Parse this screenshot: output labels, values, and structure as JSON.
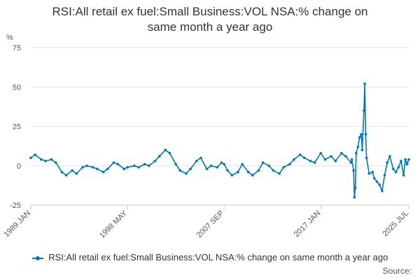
{
  "chart_data": {
    "type": "line",
    "title": "RSI:All retail ex fuel:Small Business:VOL NSA:% change on same month a year ago",
    "title_lines": [
      "RSI:All retail ex fuel:Small Business:VOL NSA:% change on",
      "same month a year ago"
    ],
    "ylabel": "%",
    "xlabel": "",
    "ylim": [
      -25,
      75
    ],
    "y_ticks": [
      75,
      50,
      25,
      0,
      -25
    ],
    "x_range": [
      "1989 JAN",
      "2025 JUL"
    ],
    "x_ticks": [
      "1989 JAN",
      "1998 MAY",
      "2007 SEP",
      "2017 JAN",
      "2025 JUL"
    ],
    "grid": true,
    "legend_position": "bottom",
    "color": "#0077b6",
    "series": [
      {
        "name": "RSI:All retail ex fuel:Small Business:VOL NSA:% change on same month a year ago",
        "points": [
          [
            "1989-01",
            5
          ],
          [
            "1989-06",
            7
          ],
          [
            "1990-01",
            4
          ],
          [
            "1990-06",
            3
          ],
          [
            "1991-01",
            4
          ],
          [
            "1991-06",
            2
          ],
          [
            "1992-01",
            -4
          ],
          [
            "1992-06",
            -6
          ],
          [
            "1993-01",
            -3
          ],
          [
            "1993-06",
            -5
          ],
          [
            "1994-01",
            -1
          ],
          [
            "1994-06",
            0
          ],
          [
            "1995-01",
            -1
          ],
          [
            "1995-06",
            -2
          ],
          [
            "1996-01",
            -4
          ],
          [
            "1996-06",
            -2
          ],
          [
            "1997-01",
            2
          ],
          [
            "1997-06",
            1
          ],
          [
            "1998-01",
            -2
          ],
          [
            "1998-05",
            -1
          ],
          [
            "1999-01",
            0
          ],
          [
            "1999-06",
            -1
          ],
          [
            "2000-01",
            1
          ],
          [
            "2000-06",
            0
          ],
          [
            "2001-01",
            3
          ],
          [
            "2001-06",
            6
          ],
          [
            "2002-01",
            10
          ],
          [
            "2002-06",
            8
          ],
          [
            "2003-01",
            1
          ],
          [
            "2003-06",
            -3
          ],
          [
            "2004-01",
            -5
          ],
          [
            "2004-06",
            -2
          ],
          [
            "2005-01",
            3
          ],
          [
            "2005-06",
            5
          ],
          [
            "2006-01",
            -2
          ],
          [
            "2006-06",
            0
          ],
          [
            "2007-01",
            -1
          ],
          [
            "2007-06",
            2
          ],
          [
            "2007-09",
            1
          ],
          [
            "2008-01",
            -3
          ],
          [
            "2008-06",
            -6
          ],
          [
            "2009-01",
            -4
          ],
          [
            "2009-06",
            1
          ],
          [
            "2010-01",
            -4
          ],
          [
            "2010-06",
            -6
          ],
          [
            "2011-01",
            -3
          ],
          [
            "2011-06",
            2
          ],
          [
            "2012-01",
            0
          ],
          [
            "2012-06",
            -3
          ],
          [
            "2013-01",
            -5
          ],
          [
            "2013-06",
            -1
          ],
          [
            "2014-01",
            1
          ],
          [
            "2014-06",
            4
          ],
          [
            "2015-01",
            7
          ],
          [
            "2015-06",
            5
          ],
          [
            "2016-01",
            3
          ],
          [
            "2016-06",
            2
          ],
          [
            "2017-01",
            8
          ],
          [
            "2017-06",
            4
          ],
          [
            "2018-01",
            6
          ],
          [
            "2018-06",
            3
          ],
          [
            "2019-01",
            8
          ],
          [
            "2019-06",
            6
          ],
          [
            "2019-12",
            2
          ],
          [
            "2020-01",
            4
          ],
          [
            "2020-03",
            -3
          ],
          [
            "2020-04",
            -20
          ],
          [
            "2020-05",
            -14
          ],
          [
            "2020-06",
            8
          ],
          [
            "2020-08",
            12
          ],
          [
            "2020-10",
            18
          ],
          [
            "2020-12",
            20
          ],
          [
            "2021-01",
            10
          ],
          [
            "2021-03",
            35
          ],
          [
            "2021-04",
            52
          ],
          [
            "2021-05",
            20
          ],
          [
            "2021-06",
            5
          ],
          [
            "2021-09",
            -5
          ],
          [
            "2022-01",
            -4
          ],
          [
            "2022-03",
            -8
          ],
          [
            "2022-06",
            -10
          ],
          [
            "2022-09",
            -12
          ],
          [
            "2022-12",
            -16
          ],
          [
            "2023-03",
            -6
          ],
          [
            "2023-06",
            2
          ],
          [
            "2023-09",
            6
          ],
          [
            "2024-01",
            -2
          ],
          [
            "2024-04",
            -4
          ],
          [
            "2024-07",
            -1
          ],
          [
            "2024-10",
            3
          ],
          [
            "2025-01",
            -6
          ],
          [
            "2025-03",
            4
          ],
          [
            "2025-05",
            1
          ],
          [
            "2025-07",
            4
          ]
        ]
      }
    ]
  },
  "footer": {
    "source_label": "Source:"
  }
}
